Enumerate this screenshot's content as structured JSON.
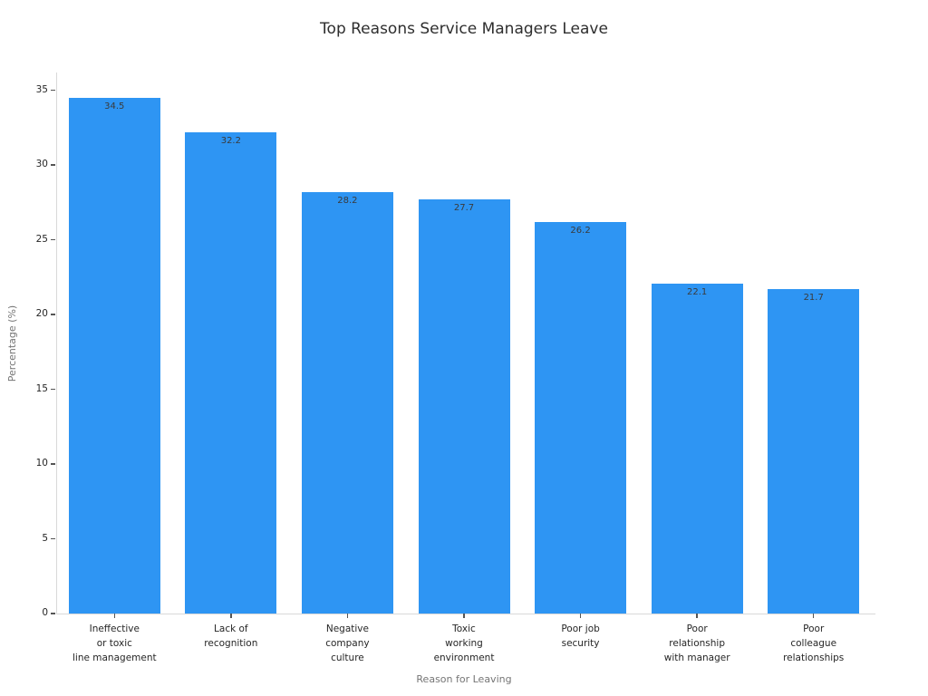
{
  "chart_data": {
    "type": "bar",
    "title": "Top Reasons Service Managers Leave",
    "xlabel": "Reason for Leaving",
    "ylabel": "Percentage (%)",
    "categories": [
      "Ineffective\nor toxic\nline management",
      "Lack of\nrecognition",
      "Negative\ncompany\nculture",
      "Toxic\nworking\nenvironment",
      "Poor job\nsecurity",
      "Poor\nrelationship\nwith manager",
      "Poor\ncolleague\nrelationships"
    ],
    "values": [
      34.5,
      32.2,
      28.2,
      27.7,
      26.2,
      22.1,
      21.7
    ],
    "value_labels": [
      "34.5",
      "32.2",
      "28.2",
      "27.7",
      "26.2",
      "22.1",
      "21.7"
    ],
    "yticks": [
      0,
      5,
      10,
      15,
      20,
      25,
      30,
      35
    ],
    "ylim": [
      0,
      36.2
    ],
    "grid": false,
    "legend": null,
    "bar_color": "#2E95F3",
    "background_color": "#ffffff"
  }
}
